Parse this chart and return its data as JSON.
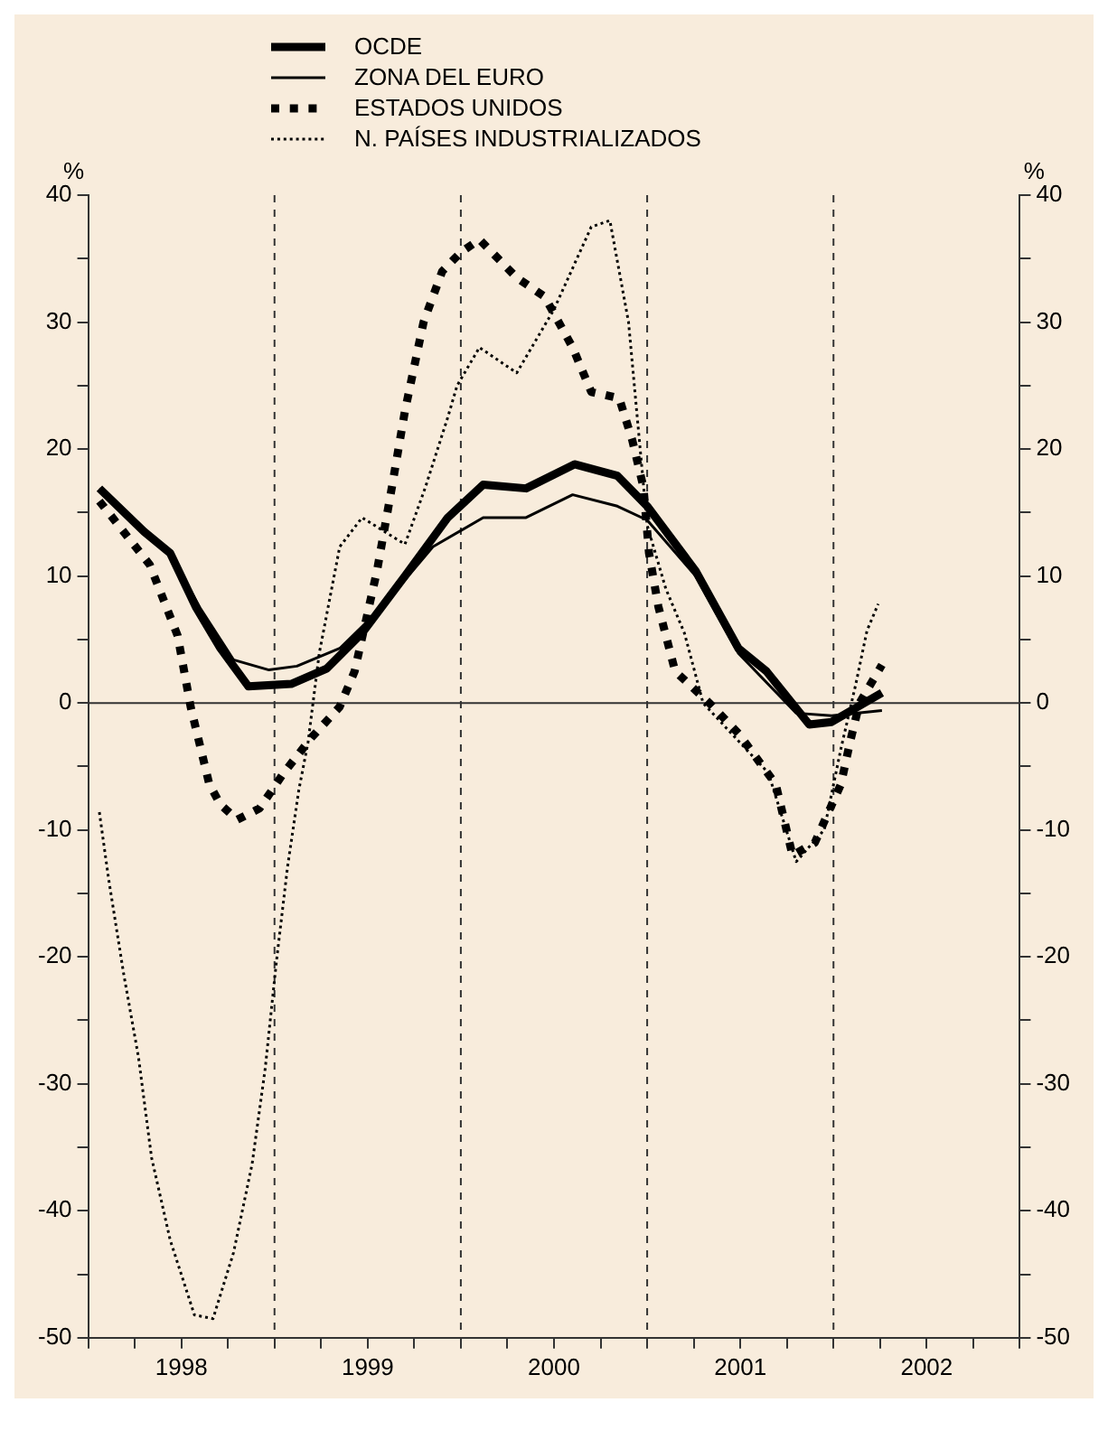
{
  "chart_data": {
    "type": "line",
    "ylabel": "%",
    "y2label": "%",
    "xlim": [
      1998,
      2003
    ],
    "xticks": [
      {
        "value": 1998,
        "label": null
      },
      {
        "value": 1998.25,
        "label": null
      },
      {
        "value": 1998.5,
        "label": "1998"
      },
      {
        "value": 1998.75,
        "label": null
      },
      {
        "value": 1999,
        "label": null
      },
      {
        "value": 1999.25,
        "label": null
      },
      {
        "value": 1999.5,
        "label": "1999"
      },
      {
        "value": 1999.75,
        "label": null
      },
      {
        "value": 2000,
        "label": null
      },
      {
        "value": 2000.25,
        "label": null
      },
      {
        "value": 2000.5,
        "label": "2000"
      },
      {
        "value": 2000.75,
        "label": null
      },
      {
        "value": 2001,
        "label": null
      },
      {
        "value": 2001.25,
        "label": null
      },
      {
        "value": 2001.5,
        "label": "2001"
      },
      {
        "value": 2001.75,
        "label": null
      },
      {
        "value": 2002,
        "label": null
      },
      {
        "value": 2002.25,
        "label": null
      },
      {
        "value": 2002.5,
        "label": "2002"
      },
      {
        "value": 2002.75,
        "label": null
      },
      {
        "value": 2003,
        "label": null
      }
    ],
    "ylim": [
      -50,
      40
    ],
    "yticks": [
      -50,
      {
        "value": -45,
        "label": null
      },
      -40,
      {
        "value": -35,
        "label": null
      },
      -30,
      {
        "value": -25,
        "label": null
      },
      -20,
      {
        "value": -15,
        "label": null
      },
      -10,
      {
        "value": -5,
        "label": null
      },
      0,
      {
        "value": 5,
        "label": null
      },
      10,
      {
        "value": 15,
        "label": null
      },
      20,
      {
        "value": 25,
        "label": null
      },
      30,
      {
        "value": 35,
        "label": null
      },
      40
    ],
    "y2lim": [
      -50,
      40
    ],
    "y2ticks": [
      -50,
      {
        "value": -45,
        "label": null
      },
      -40,
      {
        "value": -35,
        "label": null
      },
      -30,
      {
        "value": -25,
        "label": null
      },
      -20,
      {
        "value": -15,
        "label": null
      },
      -10,
      {
        "value": -5,
        "label": null
      },
      0,
      {
        "value": 5,
        "label": null
      },
      10,
      {
        "value": 15,
        "label": null
      },
      20,
      {
        "value": 25,
        "label": null
      },
      30,
      {
        "value": 35,
        "label": null
      },
      40
    ],
    "grid": false,
    "legend": "top left",
    "marker": "none",
    "ref_lines": [
      {
        "axis": "y",
        "value": 0,
        "label": null,
        "line_style": "solid"
      },
      {
        "axis": "x",
        "value": 1999,
        "label": null,
        "line_style": "dashed"
      },
      {
        "axis": "x",
        "value": 2000,
        "label": null,
        "line_style": "dashed"
      },
      {
        "axis": "x",
        "value": 2001,
        "label": null,
        "line_style": "dashed"
      },
      {
        "axis": "x",
        "value": 2002,
        "label": null,
        "line_style": "dashed"
      }
    ],
    "series": [
      {
        "name": "OCDE",
        "color": "#000000",
        "line_style": "solid",
        "x": [
          1998.06,
          1998.3,
          1998.44,
          1998.58,
          1998.71,
          1998.86,
          1999.09,
          1999.28,
          1999.47,
          1999.7,
          1999.93,
          2000.12,
          2000.35,
          2000.61,
          2000.84,
          2001.0,
          2001.26,
          2001.49,
          2001.64,
          2001.87,
          2001.99,
          2002.26
        ],
        "values": [
          16.9,
          13.5,
          11.8,
          7.5,
          4.3,
          1.3,
          1.5,
          2.7,
          5.5,
          10,
          14.6,
          17.2,
          16.9,
          18.8,
          17.9,
          15.5,
          10.4,
          4.3,
          2.5,
          -1.7,
          -1.5,
          0.8
        ]
      },
      {
        "name": "ZONA DEL EURO",
        "color": "#000000",
        "line_style": "solid",
        "x": [
          1998.06,
          1998.3,
          1998.44,
          1998.6,
          1998.78,
          1998.97,
          1999.12,
          1999.35,
          1999.58,
          1999.85,
          2000.12,
          2000.35,
          2000.6,
          2000.84,
          2001.0,
          2001.26,
          2001.49,
          2001.8,
          2001.99,
          2002.26
        ],
        "values": [
          16.9,
          13.5,
          11.8,
          7.5,
          3.4,
          2.6,
          2.9,
          4.3,
          7.6,
          12.3,
          14.6,
          14.6,
          16.4,
          15.5,
          14.4,
          10,
          3.9,
          -0.8,
          -1.0,
          -0.6
        ]
      },
      {
        "name": "ESTADOS UNIDOS",
        "color": "#000000",
        "line_style": "dotted",
        "x": [
          1998.06,
          1998.33,
          1998.48,
          1998.55,
          1998.65,
          1998.71,
          1998.8,
          1998.92,
          1999.05,
          1999.2,
          1999.35,
          1999.43,
          1999.55,
          1999.63,
          1999.7,
          1999.8,
          1999.9,
          2000.0,
          2000.1,
          2000.3,
          2000.45,
          2000.6,
          2000.7,
          2000.85,
          2000.92,
          2000.98,
          2001.01,
          2001.06,
          2001.15,
          2001.34,
          2001.49,
          2001.69,
          2001.78,
          2001.9,
          2002.04,
          2002.09,
          2002.14,
          2002.26
        ],
        "values": [
          15.9,
          10.9,
          5.3,
          -0.3,
          -6.4,
          -8,
          -9.2,
          -8.3,
          -5.5,
          -2.7,
          -0.3,
          2.5,
          10.4,
          17,
          23,
          30,
          34,
          35.5,
          36.5,
          33.5,
          32,
          28,
          24.5,
          24,
          20.7,
          17,
          11.8,
          7.6,
          2.5,
          -0.1,
          -2.4,
          -6.4,
          -12,
          -11,
          -6.4,
          -3,
          0,
          3
        ]
      },
      {
        "name": "N. PAÍSES INDUSTRIALIZADOS",
        "color": "#000000",
        "line_style": "dotted",
        "x": [
          1998.06,
          1998.11,
          1998.19,
          1998.27,
          1998.34,
          1998.44,
          1998.57,
          1998.67,
          1998.78,
          1998.88,
          1998.95,
          1999.01,
          1999.07,
          1999.13,
          1999.18,
          1999.24,
          1999.35,
          1999.47,
          1999.7,
          1999.81,
          1999.93,
          1999.98,
          2000.1,
          2000.3,
          2000.5,
          2000.7,
          2000.8,
          2000.9,
          2000.95,
          2001.0,
          2001.1,
          2001.2,
          2001.3,
          2001.49,
          2001.65,
          2001.8,
          2001.95,
          2002.04,
          2002.12,
          2002.18,
          2002.24
        ],
        "values": [
          -8.6,
          -13.9,
          -21.3,
          -27.9,
          -35.8,
          -42.3,
          -48.2,
          -48.5,
          -43.3,
          -36.3,
          -28.8,
          -20.4,
          -12.9,
          -6.9,
          -3.1,
          3.9,
          12.3,
          14.6,
          12.5,
          17,
          22.5,
          25,
          28,
          26,
          31,
          37.5,
          38,
          30,
          22,
          14,
          9,
          5.5,
          0,
          -3,
          -5.5,
          -12.5,
          -10,
          -3.6,
          1.5,
          5.7,
          7.8
        ]
      }
    ]
  }
}
